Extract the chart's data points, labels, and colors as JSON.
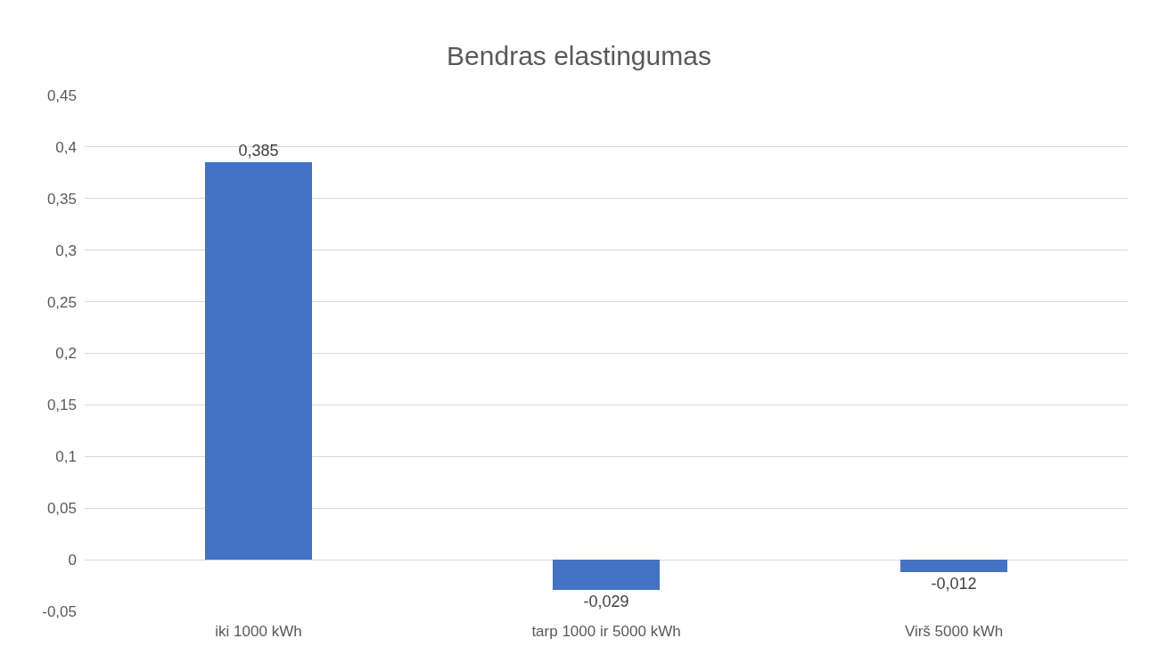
{
  "chart_data": {
    "type": "bar",
    "title": "Bendras elastingumas",
    "categories": [
      "iki 1000 kWh",
      "tarp 1000 ir 5000 kWh",
      "Virš 5000 kWh"
    ],
    "values": [
      0.385,
      -0.029,
      -0.012
    ],
    "value_labels": [
      "0,385",
      "-0,029",
      "-0,012"
    ],
    "color": "#4472c4",
    "ylim": [
      -0.05,
      0.45
    ],
    "yticks": [
      {
        "value": -0.05,
        "label": "-0,05"
      },
      {
        "value": 0,
        "label": "0"
      },
      {
        "value": 0.05,
        "label": "0,05"
      },
      {
        "value": 0.1,
        "label": "0,1"
      },
      {
        "value": 0.15,
        "label": "0,15"
      },
      {
        "value": 0.2,
        "label": "0,2"
      },
      {
        "value": 0.25,
        "label": "0,25"
      },
      {
        "value": 0.3,
        "label": "0,3"
      },
      {
        "value": 0.35,
        "label": "0,35"
      },
      {
        "value": 0.4,
        "label": "0,4"
      },
      {
        "value": 0.45,
        "label": "0,45"
      }
    ],
    "grid": "y"
  }
}
